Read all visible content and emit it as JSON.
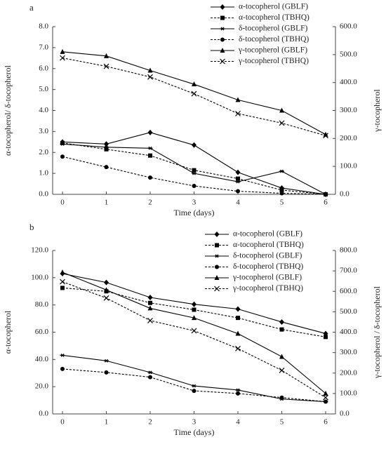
{
  "chart_data": [
    {
      "type": "line",
      "label": "a",
      "x_label": "Time (days)",
      "y_label": "α-tocopherol/ δ-tocopherol",
      "y2_label": "γ-tocopherol",
      "x": [
        0,
        1,
        2,
        3,
        4,
        5,
        6
      ],
      "xticks": [
        0,
        1,
        2,
        3,
        4,
        5,
        6
      ],
      "ylim": [
        0,
        8
      ],
      "yticks": [
        {
          "value": 0,
          "label": "0.0"
        },
        {
          "value": 1,
          "label": "1.0"
        },
        {
          "value": 2,
          "label": "2.0"
        },
        {
          "value": 3,
          "label": "3.0"
        },
        {
          "value": 4,
          "label": "4.0"
        },
        {
          "value": 5,
          "label": "5.0"
        },
        {
          "value": 6,
          "label": "6.0"
        },
        {
          "value": 7,
          "label": "7.0"
        },
        {
          "value": 8,
          "label": "8.0"
        }
      ],
      "y2lim": [
        0,
        600
      ],
      "y2ticks": [
        {
          "value": 0,
          "label": "0.0"
        },
        {
          "value": 100,
          "label": "100.0"
        },
        {
          "value": 200,
          "label": "200.0"
        },
        {
          "value": 300,
          "label": "300.0"
        },
        {
          "value": 400,
          "label": "400.0"
        },
        {
          "value": 500,
          "label": "500.0"
        },
        {
          "value": 600,
          "label": "600.0"
        }
      ],
      "series": [
        {
          "name": "α-tocopherol (GBLF)",
          "color": "#000000",
          "marker": "diamond",
          "dashed": false,
          "values": [
            2.5,
            2.4,
            2.95,
            2.35,
            1.05,
            0.3,
            0
          ]
        },
        {
          "name": "α-tocopherol (TBHQ)",
          "color": "#000000",
          "marker": "square",
          "dashed": true,
          "values": [
            2.45,
            2.15,
            1.85,
            1.15,
            0.75,
            0.2,
            0
          ]
        },
        {
          "name": "δ-tocopherol (GBLF)",
          "color": "#000000",
          "marker": "bar",
          "dashed": false,
          "values": [
            2.4,
            2.25,
            2.2,
            1.0,
            0.6,
            1.1,
            0
          ]
        },
        {
          "name": "δ-tocopherol  (TBHQ)",
          "color": "#000000",
          "marker": "circle",
          "dashed": true,
          "values": [
            1.8,
            1.3,
            0.8,
            0.4,
            0.15,
            0.05,
            0
          ]
        },
        {
          "name": "γ-tocopherol (GBLF)",
          "color": "#000000",
          "marker": "triangle",
          "dashed": false,
          "axis": "y2",
          "values": [
            510,
            495,
            443,
            394,
            338,
            300,
            214
          ]
        },
        {
          "name": "γ-tocopherol (TBHQ)",
          "color": "#000000",
          "marker": "x",
          "dashed": true,
          "axis": "y2",
          "values": [
            488,
            458,
            420,
            360,
            289,
            255,
            210
          ]
        }
      ]
    },
    {
      "type": "line",
      "label": "b",
      "x_label": "Time (days)",
      "y_label": "α-tocopherol",
      "y2_label": "γ-tocopherol / δ-tocopherol",
      "x": [
        0,
        1,
        2,
        3,
        4,
        5,
        6
      ],
      "xticks": [
        0,
        1,
        2,
        3,
        4,
        5,
        6
      ],
      "ylim": [
        0,
        120
      ],
      "yticks": [
        {
          "value": 0,
          "label": "0.0"
        },
        {
          "value": 20,
          "label": "20.0"
        },
        {
          "value": 40,
          "label": "40.0"
        },
        {
          "value": 60,
          "label": "60.0"
        },
        {
          "value": 80,
          "label": "80.0"
        },
        {
          "value": 100,
          "label": "100.0"
        },
        {
          "value": 120,
          "label": "120.0"
        }
      ],
      "y2lim": [
        0,
        800
      ],
      "y2ticks": [
        {
          "value": 0,
          "label": "0.0"
        },
        {
          "value": 100,
          "label": "100.0"
        },
        {
          "value": 200,
          "label": "200.0"
        },
        {
          "value": 300,
          "label": "300.0"
        },
        {
          "value": 400,
          "label": "400.0"
        },
        {
          "value": 500,
          "label": "500.0"
        },
        {
          "value": 600,
          "label": "600.0"
        },
        {
          "value": 700,
          "label": "700.0"
        },
        {
          "value": 800,
          "label": "800.0"
        }
      ],
      "series": [
        {
          "name": "α-tocopherol (GBLF)",
          "color": "#000000",
          "marker": "diamond",
          "dashed": false,
          "values": [
            103,
            96.5,
            85.5,
            80.5,
            77,
            67.5,
            59
          ]
        },
        {
          "name": "α-tocopherol (TBHQ)",
          "color": "#000000",
          "marker": "square",
          "dashed": true,
          "values": [
            92.5,
            90,
            81.5,
            76.5,
            70.5,
            62,
            56.5
          ]
        },
        {
          "name": "δ-tocopherol (GBLF)",
          "color": "#000000",
          "marker": "bar",
          "dashed": false,
          "axis": "y2",
          "values": [
            287,
            260,
            203,
            137,
            117,
            73,
            60
          ]
        },
        {
          "name": "δ-tocopherol  (TBHQ)",
          "color": "#000000",
          "marker": "circle",
          "dashed": true,
          "axis": "y2",
          "values": [
            220,
            203,
            180,
            113,
            100,
            80,
            60
          ]
        },
        {
          "name": "γ-tocopherol (GBLF)",
          "color": "#000000",
          "marker": "triangle",
          "dashed": false,
          "axis": "y2",
          "values": [
            693,
            607,
            517,
            470,
            393,
            280,
            100
          ]
        },
        {
          "name": "γ-tocopherol (TBHQ)",
          "color": "#000000",
          "marker": "x",
          "dashed": true,
          "axis": "y2",
          "values": [
            647,
            567,
            457,
            407,
            320,
            213,
            80
          ]
        }
      ]
    }
  ]
}
